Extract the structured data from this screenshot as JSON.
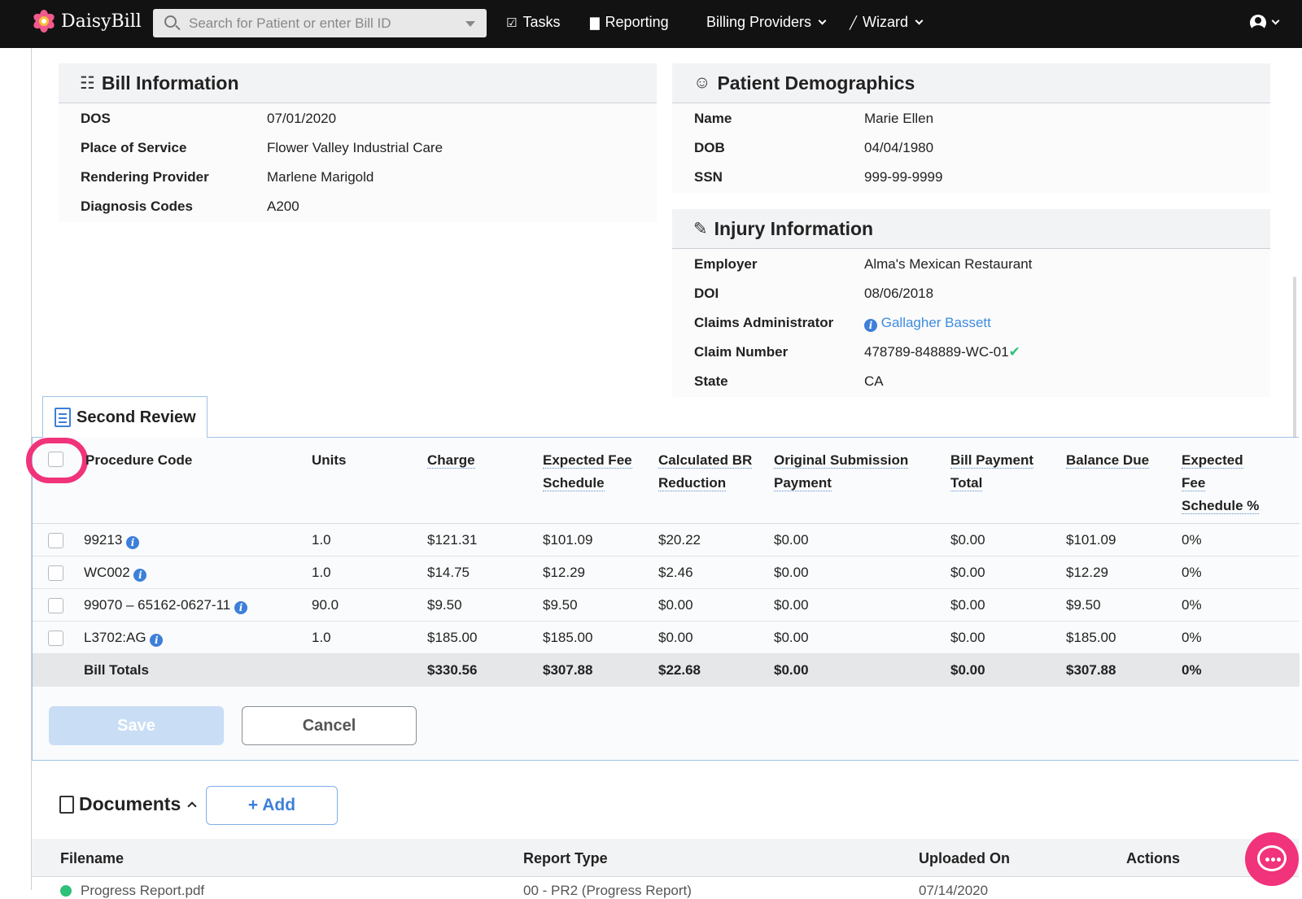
{
  "app": {
    "name": "DaisyBill"
  },
  "search": {
    "placeholder": "Search for Patient or enter Bill ID"
  },
  "nav": {
    "tasks": "Tasks",
    "reporting": "Reporting",
    "billing_providers": "Billing Providers",
    "wizard": "Wizard"
  },
  "bill_info": {
    "title": "Bill Information",
    "rows": [
      {
        "label": "DOS",
        "value": "07/01/2020"
      },
      {
        "label": "Place of Service",
        "value": "Flower Valley Industrial Care"
      },
      {
        "label": "Rendering Provider",
        "value": "Marlene Marigold"
      },
      {
        "label": "Diagnosis Codes",
        "value": "A200"
      }
    ]
  },
  "patient": {
    "title": "Patient Demographics",
    "rows": [
      {
        "label": "Name",
        "value": "Marie Ellen"
      },
      {
        "label": "DOB",
        "value": "04/04/1980"
      },
      {
        "label": "SSN",
        "value": "999-99-9999"
      }
    ]
  },
  "injury": {
    "title": "Injury Information",
    "rows": [
      {
        "label": "Employer",
        "value": "Alma's Mexican Restaurant"
      },
      {
        "label": "DOI",
        "value": "08/06/2018"
      },
      {
        "label": "Claims Administrator",
        "value": "Gallagher Bassett"
      },
      {
        "label": "Claim Number",
        "value": "478789-848889-WC-01"
      },
      {
        "label": "State",
        "value": "CA"
      }
    ]
  },
  "review": {
    "tab_label": "Second Review",
    "columns": [
      {
        "l1": "Procedure Code",
        "l2": "",
        "l3": ""
      },
      {
        "l1": "Units",
        "l2": "",
        "l3": ""
      },
      {
        "l1": "Charge",
        "l2": "",
        "l3": ""
      },
      {
        "l1": "Expected Fee",
        "l2": "Schedule",
        "l3": ""
      },
      {
        "l1": "Calculated BR",
        "l2": "Reduction",
        "l3": ""
      },
      {
        "l1": "Original Submission",
        "l2": "Payment",
        "l3": ""
      },
      {
        "l1": "Bill Payment",
        "l2": "Total",
        "l3": ""
      },
      {
        "l1": "Balance Due",
        "l2": "",
        "l3": ""
      },
      {
        "l1": "Expected",
        "l2": "Fee",
        "l3": "Schedule %"
      }
    ],
    "rows": [
      [
        "99213",
        "1.0",
        "$121.31",
        "$101.09",
        "$20.22",
        "$0.00",
        "$0.00",
        "$101.09",
        "0%"
      ],
      [
        "WC002",
        "1.0",
        "$14.75",
        "$12.29",
        "$2.46",
        "$0.00",
        "$0.00",
        "$12.29",
        "0%"
      ],
      [
        "99070 – 65162-0627-11",
        "90.0",
        "$9.50",
        "$9.50",
        "$0.00",
        "$0.00",
        "$0.00",
        "$9.50",
        "0%"
      ],
      [
        "L3702:AG",
        "1.0",
        "$185.00",
        "$185.00",
        "$0.00",
        "$0.00",
        "$0.00",
        "$185.00",
        "0%"
      ]
    ],
    "totals": [
      "Bill Totals",
      "",
      "$330.56",
      "$307.88",
      "$22.68",
      "$0.00",
      "$0.00",
      "$307.88",
      "0%"
    ],
    "save_label": "Save",
    "cancel_label": "Cancel"
  },
  "documents": {
    "title": "Documents",
    "add_label": "Add",
    "columns": [
      "Filename",
      "Report Type",
      "Uploaded On",
      "Actions"
    ],
    "rows": [
      {
        "filename": "Progress Report.pdf",
        "report_type": "00 - PR2 (Progress Report)",
        "uploaded_on": "07/14/2020"
      }
    ]
  },
  "colors": {
    "accent": "#3d7fd9",
    "highlight": "#f0337a",
    "nav_bg": "#121212",
    "success": "#2fc07a"
  }
}
